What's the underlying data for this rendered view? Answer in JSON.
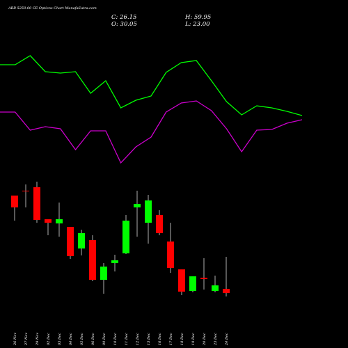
{
  "chart_data": [
    {
      "type": "line",
      "title": "ABB 5250.00  CE Options  Chart MunafaSutra.com",
      "ylim": [
        0,
        250
      ],
      "series": [
        {
          "color": "#00ff00",
          "values": [
            157,
            157,
            170,
            147,
            145,
            147,
            116,
            134,
            95,
            106,
            112,
            146,
            160,
            163,
            134,
            104,
            85,
            98,
            95,
            90,
            84
          ]
        },
        {
          "color": "#cc00cc",
          "values": [
            89,
            89,
            63,
            68,
            65,
            35,
            62,
            62,
            16,
            39,
            53,
            89,
            102,
            105,
            91,
            65,
            32,
            63,
            64,
            73,
            78
          ]
        }
      ]
    },
    {
      "type": "candlestick",
      "annotations": [
        "C: 26.15",
        "O: 30.05",
        "H: 59.95",
        "L: 23.00"
      ],
      "categories": [
        "26 Nov",
        "27 Nov",
        "29 Nov",
        "02 Dec",
        "03 Dec",
        "04 Dec",
        "05 Dec",
        "06 Dec",
        "09 Dec",
        "10 Dec",
        "11 Dec",
        "12 Dec",
        "13 Dec",
        "16 Dec",
        "17 Dec",
        "18 Dec",
        "19 Dec",
        "20 Dec",
        "23 Dec",
        "24 Dec"
      ],
      "open": [
        117.15,
        121.7,
        124.95,
        95.05,
        91.15,
        87.9,
        67.75,
        75.55,
        38.5,
        54.1,
        63.2,
        106.1,
        91.8,
        98.95,
        74.25,
        48.25,
        28.1,
        40.45,
        28.1,
        30.05
      ],
      "high": [
        117.15,
        127.55,
        130.15,
        95.05,
        110.65,
        87.9,
        85.3,
        80.1,
        54.1,
        61.9,
        98.95,
        121.7,
        117.8,
        103.5,
        91.8,
        48.25,
        41.75,
        58.65,
        42.4,
        59.95
      ],
      "low": [
        93.75,
        106.1,
        91.8,
        80.1,
        78.8,
        58,
        61.25,
        37.2,
        25.5,
        46.3,
        62.55,
        78.8,
        72.3,
        80.1,
        45,
        24.2,
        26.8,
        29.4,
        26.8,
        23
      ],
      "close": [
        106.1,
        121.05,
        94.4,
        91.8,
        95.05,
        60.6,
        82.05,
        38.5,
        50.85,
        56.7,
        93.75,
        109.35,
        112.6,
        82.05,
        49.55,
        27.45,
        41.75,
        39.15,
        33.3,
        26.15
      ],
      "up_color": "#00ff00",
      "down_color": "#ff0000",
      "ylim": [
        20,
        135
      ]
    }
  ]
}
